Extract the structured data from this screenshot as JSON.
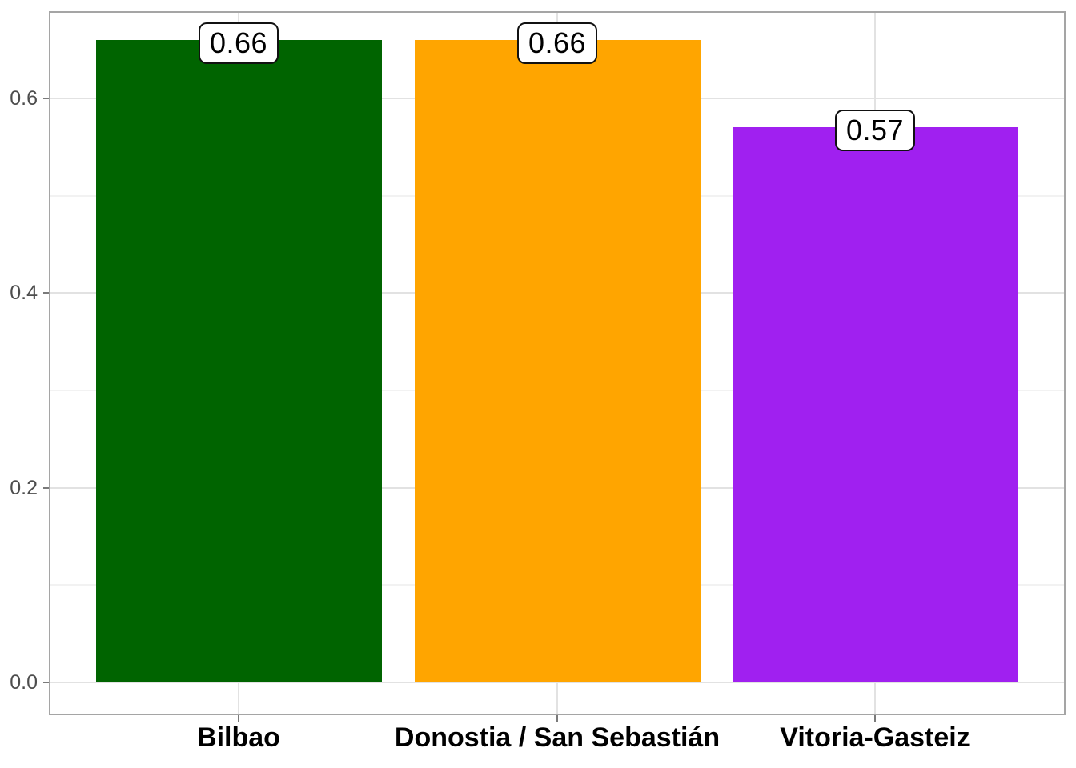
{
  "chart_data": {
    "type": "bar",
    "title": "",
    "xlabel": "",
    "ylabel": "",
    "categories": [
      "Bilbao",
      "Donostia / San Sebastián",
      "Vitoria-Gasteiz"
    ],
    "values": [
      0.66,
      0.66,
      0.57
    ],
    "value_labels": [
      "0.66",
      "0.66",
      "0.57"
    ],
    "bar_colors": [
      "#006400",
      "#FFA500",
      "#A020F0"
    ],
    "y_axis": {
      "tick_values": [
        0.0,
        0.2,
        0.4,
        0.6
      ],
      "tick_labels": [
        "0.0",
        "0.2",
        "0.4",
        "0.6"
      ],
      "minor_tick_values": [
        0.1,
        0.3,
        0.5
      ],
      "ylim": [
        0,
        0.69
      ]
    },
    "grid": "horizontal major+minor, vertical major at category centers",
    "legend": "none",
    "style": {
      "background": "#FFFFFF",
      "panel_border": "#A5A5A5",
      "grid_major": "#E2E2E2",
      "grid_minor": "#F2F2F2",
      "y_axis_text_color": "#4D4D4D",
      "x_axis_text_color": "#000000",
      "label_box_bg": "#FFFFFF",
      "label_box_border": "#111111"
    }
  }
}
